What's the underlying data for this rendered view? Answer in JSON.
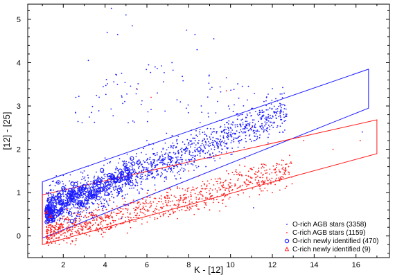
{
  "chart_data": {
    "type": "scatter",
    "xlabel": "K - [12]",
    "ylabel": "[12] - [25]",
    "xlim": [
      0.3,
      17.6
    ],
    "ylim": [
      -0.5,
      5.35
    ],
    "xticks": [
      2,
      4,
      6,
      8,
      10,
      12,
      14,
      16
    ],
    "yticks": [
      0,
      1,
      2,
      3,
      4,
      5
    ],
    "grid": false,
    "legend_position": "bottom-right",
    "colors": {
      "o_rich": "#1a1aff",
      "c_rich": "#ff1a1a"
    },
    "series": [
      {
        "name": "O-rich AGB stars (3358)",
        "marker": "dot",
        "color": "#1a1aff",
        "approx_center": [
          5.0,
          1.8
        ],
        "sample_points": [
          [
            4.3,
            5.25
          ],
          [
            5.0,
            5.1
          ],
          [
            5.3,
            4.85
          ],
          [
            4.1,
            4.7
          ],
          [
            4.6,
            4.65
          ],
          [
            7.9,
            4.75
          ],
          [
            8.3,
            4.65
          ],
          [
            9.2,
            4.55
          ],
          [
            8.4,
            4.3
          ],
          [
            3.2,
            4.05
          ],
          [
            7.2,
            4.0
          ],
          [
            9.8,
            3.65
          ],
          [
            12.0,
            3.4
          ],
          [
            6.5,
            3.3
          ],
          [
            8.6,
            3.0
          ],
          [
            10.5,
            2.8
          ],
          [
            11.2,
            2.5
          ],
          [
            12.5,
            2.4
          ],
          [
            16.3,
            2.4
          ],
          [
            6.0,
            2.2
          ],
          [
            7.5,
            2.3
          ],
          [
            9.5,
            2.1
          ],
          [
            4.0,
            1.8
          ],
          [
            5.5,
            1.9
          ],
          [
            3.0,
            1.5
          ],
          [
            2.0,
            1.2
          ],
          [
            1.5,
            0.9
          ],
          [
            2.5,
            1.0
          ],
          [
            11.1,
            0.65
          ]
        ]
      },
      {
        "name": "C-rich AGB stars (1159)",
        "marker": "dot",
        "color": "#ff1a1a",
        "approx_center": [
          6.0,
          0.7
        ],
        "sample_points": [
          [
            5.5,
            3.4
          ],
          [
            6.2,
            3.2
          ],
          [
            9.8,
            3.35
          ],
          [
            11.0,
            2.5
          ],
          [
            13.5,
            2.2
          ],
          [
            14.9,
            2.0
          ],
          [
            16.2,
            2.2
          ],
          [
            8.0,
            1.5
          ],
          [
            10.0,
            1.3
          ],
          [
            7.0,
            1.0
          ],
          [
            6.0,
            0.9
          ],
          [
            5.0,
            0.7
          ],
          [
            4.0,
            0.5
          ],
          [
            3.0,
            0.3
          ],
          [
            2.0,
            0.2
          ],
          [
            1.6,
            0.1
          ],
          [
            9.0,
            0.6
          ],
          [
            12.0,
            1.0
          ]
        ]
      },
      {
        "name": "O-rich newly identified (470)",
        "marker": "open-circle",
        "color": "#1a1aff",
        "approx_center": [
          2.6,
          0.95
        ],
        "sample_points": [
          [
            1.3,
            0.6
          ],
          [
            1.5,
            0.85
          ],
          [
            1.8,
            0.95
          ],
          [
            2.0,
            1.1
          ],
          [
            2.3,
            1.0
          ],
          [
            2.6,
            1.2
          ],
          [
            3.0,
            1.15
          ],
          [
            3.3,
            0.95
          ],
          [
            3.7,
            1.3
          ],
          [
            4.1,
            1.2
          ],
          [
            4.8,
            1.45
          ],
          [
            5.6,
            1.7
          ],
          [
            7.1,
            1.8
          ],
          [
            8.5,
            2.0
          ],
          [
            1.6,
            0.45
          ]
        ]
      },
      {
        "name": "C-rich newly identified (9)",
        "marker": "open-triangle",
        "color": "#ff1a1a",
        "points": [
          [
            1.4,
            0.45
          ],
          [
            1.9,
            0.25
          ],
          [
            2.7,
            0.1
          ],
          [
            3.1,
            0.3
          ],
          [
            3.6,
            0.15
          ],
          [
            4.1,
            0.45
          ],
          [
            1.2,
            0.55
          ],
          [
            2.2,
            0.4
          ],
          [
            3.4,
            0.5
          ]
        ]
      }
    ],
    "regions": [
      {
        "name": "o_rich_box",
        "color": "#1a1aff",
        "polygon": [
          [
            1.0,
            -0.05
          ],
          [
            1.0,
            1.25
          ],
          [
            16.6,
            3.85
          ],
          [
            16.6,
            2.95
          ]
        ]
      },
      {
        "name": "c_rich_box",
        "color": "#ff1a1a",
        "polygon": [
          [
            1.0,
            -0.2
          ],
          [
            1.0,
            0.95
          ],
          [
            17.0,
            2.68
          ],
          [
            17.0,
            1.9
          ]
        ]
      }
    ]
  }
}
